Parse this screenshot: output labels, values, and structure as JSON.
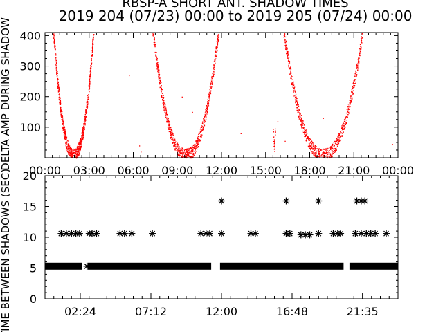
{
  "header": {
    "title": "RBSP-A SHORT ANT. SHADOW TIMES",
    "subtitle": "2019 204 (07/23) 00:00 to 2019 205 (07/24) 00:00"
  },
  "colors": {
    "points_top": "#ff0000",
    "points_bottom": "#000000",
    "axis": "#000000"
  },
  "chart_data": [
    {
      "type": "scatter",
      "ylabel": "DELTA AMP DURING SHADOW",
      "xlabel": "",
      "x_units": "hours since 2019-07-23 00:00",
      "xlim": [
        0,
        24
      ],
      "ylim": [
        0,
        410
      ],
      "y_ticks": [
        100,
        200,
        300,
        400
      ],
      "x_tick_labels": [
        "00:00",
        "03:00",
        "06:00",
        "09:00",
        "12:00",
        "15:00",
        "18:00",
        "21:00",
        "00:00"
      ],
      "marker": "dot",
      "color": "#ff0000",
      "clusters": [
        {
          "start": 0.55,
          "end": 3.3,
          "min_y": 10,
          "top_y": 420
        },
        {
          "start": 7.3,
          "end": 11.8,
          "min_y": 10,
          "top_y": 420
        },
        {
          "start": 15.5,
          "end": 15.65,
          "min_y": 40,
          "top_y": 100
        },
        {
          "start": 16.2,
          "end": 21.6,
          "min_y": 10,
          "top_y": 420
        }
      ]
    },
    {
      "type": "scatter",
      "ylabel": "TIME BETWEEN SHADOWS (SEC)",
      "xlabel": "",
      "x_units": "hours since 2019-07-23 00:00",
      "xlim": [
        0,
        24
      ],
      "ylim": [
        0,
        20
      ],
      "y_ticks": [
        0,
        5,
        10,
        15,
        20
      ],
      "x_tick_labels": [
        "02:24",
        "07:12",
        "12:00",
        "16:48",
        "21:35"
      ],
      "x_tick_hours": [
        2.4,
        7.2,
        12.0,
        16.8,
        21.583
      ],
      "marker": "asterisk",
      "color": "#000000",
      "baseline_value": 5.3,
      "baseline_segments": [
        [
          0.0,
          2.5
        ],
        [
          2.9,
          11.3
        ],
        [
          11.9,
          20.3
        ],
        [
          20.7,
          24.0
        ]
      ],
      "points": [
        {
          "x": 1.1,
          "y": 10.6
        },
        {
          "x": 1.45,
          "y": 10.6
        },
        {
          "x": 1.8,
          "y": 10.6
        },
        {
          "x": 2.1,
          "y": 10.6
        },
        {
          "x": 2.35,
          "y": 10.6
        },
        {
          "x": 3.0,
          "y": 10.6
        },
        {
          "x": 3.2,
          "y": 10.6
        },
        {
          "x": 3.5,
          "y": 10.6
        },
        {
          "x": 5.1,
          "y": 10.6
        },
        {
          "x": 5.4,
          "y": 10.6
        },
        {
          "x": 5.9,
          "y": 10.6
        },
        {
          "x": 7.3,
          "y": 10.6
        },
        {
          "x": 10.6,
          "y": 10.6
        },
        {
          "x": 10.95,
          "y": 10.6
        },
        {
          "x": 11.2,
          "y": 10.6
        },
        {
          "x": 12.0,
          "y": 15.9
        },
        {
          "x": 12.0,
          "y": 10.6
        },
        {
          "x": 14.0,
          "y": 10.6
        },
        {
          "x": 14.3,
          "y": 10.6
        },
        {
          "x": 16.4,
          "y": 15.9
        },
        {
          "x": 16.4,
          "y": 10.6
        },
        {
          "x": 16.65,
          "y": 10.6
        },
        {
          "x": 17.4,
          "y": 10.4
        },
        {
          "x": 17.7,
          "y": 10.4
        },
        {
          "x": 18.0,
          "y": 10.4
        },
        {
          "x": 18.6,
          "y": 15.9
        },
        {
          "x": 18.6,
          "y": 10.6
        },
        {
          "x": 19.6,
          "y": 10.6
        },
        {
          "x": 19.9,
          "y": 10.6
        },
        {
          "x": 20.1,
          "y": 10.6
        },
        {
          "x": 21.2,
          "y": 15.9
        },
        {
          "x": 21.5,
          "y": 15.9
        },
        {
          "x": 21.75,
          "y": 15.9
        },
        {
          "x": 21.1,
          "y": 10.6
        },
        {
          "x": 21.5,
          "y": 10.6
        },
        {
          "x": 21.85,
          "y": 10.6
        },
        {
          "x": 22.15,
          "y": 10.6
        },
        {
          "x": 22.45,
          "y": 10.6
        },
        {
          "x": 23.2,
          "y": 10.6
        }
      ]
    }
  ]
}
